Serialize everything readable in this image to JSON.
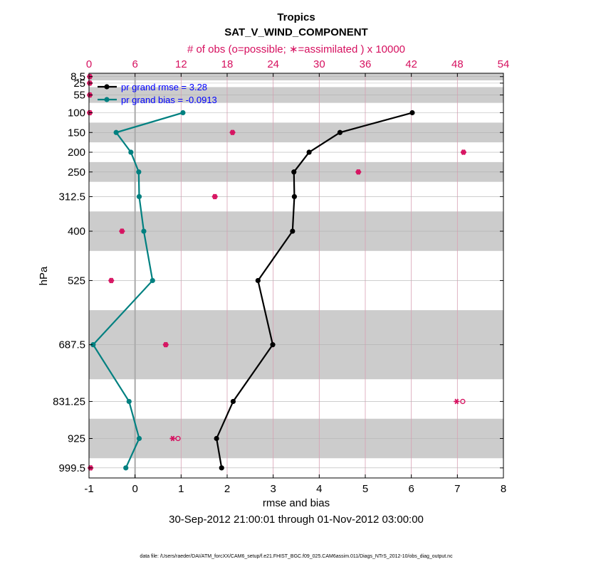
{
  "chart_data": {
    "type": "line",
    "title": "Tropics",
    "subtitle": "SAT_V_WIND_COMPONENT",
    "top_axis_label": "# of obs (o=possible; ∗=assimilated ) x 10000",
    "xlabel": "rmse and bias",
    "ylabel": "hPa",
    "date_range": "30-Sep-2012 21:00:01 through 01-Nov-2012 03:00:00",
    "footnote": "data file: /Users/raeder/DAI/ATM_forcXX/CAM6_setup/f.e21.FHIST_BGC.f09_025.CAM6assim.011/Diags_NTrS_2012-10/obs_diag_output.nc",
    "xlim": [
      -1,
      8
    ],
    "x_ticks": [
      "-1",
      "0",
      "1",
      "2",
      "3",
      "4",
      "5",
      "6",
      "7",
      "8"
    ],
    "top_xlim": [
      0,
      54
    ],
    "top_ticks": [
      "0",
      "6",
      "12",
      "18",
      "24",
      "30",
      "36",
      "42",
      "48",
      "54"
    ],
    "ylim": [
      1025,
      0
    ],
    "levels": [
      8.5,
      25,
      55,
      100,
      150,
      200,
      250,
      312.5,
      400,
      525,
      687.5,
      831.25,
      925,
      999.5
    ],
    "level_labels": [
      "8.5",
      "25",
      "55",
      "100",
      "150",
      "200",
      "250",
      "312.5",
      "400",
      "525",
      "687.5",
      "831.25",
      "925",
      "999.5"
    ],
    "layer_bands": [
      [
        0,
        18
      ],
      [
        35,
        75
      ],
      [
        125,
        175
      ],
      [
        225,
        275
      ],
      [
        350,
        450
      ],
      [
        600,
        775
      ],
      [
        875,
        975
      ]
    ],
    "series": [
      {
        "name": "pr grand rmse = 3.28",
        "color": "#000000",
        "points": [
          {
            "p": 100,
            "v": 6.02
          },
          {
            "p": 150,
            "v": 4.45
          },
          {
            "p": 200,
            "v": 3.78
          },
          {
            "p": 250,
            "v": 3.45
          },
          {
            "p": 312.5,
            "v": 3.46
          },
          {
            "p": 400,
            "v": 3.42
          },
          {
            "p": 525,
            "v": 2.67
          },
          {
            "p": 687.5,
            "v": 2.99
          },
          {
            "p": 831.25,
            "v": 2.13
          },
          {
            "p": 925,
            "v": 1.77
          },
          {
            "p": 999.5,
            "v": 1.88
          }
        ]
      },
      {
        "name": "pr grand bias = -0.0913",
        "color": "#008080",
        "points": [
          {
            "p": 100,
            "v": 1.04
          },
          {
            "p": 150,
            "v": -0.41
          },
          {
            "p": 200,
            "v": -0.09
          },
          {
            "p": 250,
            "v": 0.08
          },
          {
            "p": 312.5,
            "v": 0.09
          },
          {
            "p": 400,
            "v": 0.19
          },
          {
            "p": 525,
            "v": 0.38
          },
          {
            "p": 687.5,
            "v": -0.91
          },
          {
            "p": 831.25,
            "v": -0.13
          },
          {
            "p": 925,
            "v": 0.09
          },
          {
            "p": 999.5,
            "v": -0.2
          }
        ]
      }
    ],
    "obs_counts": {
      "color": "#d6105f",
      "possible": [
        {
          "p": 8.5,
          "n": 0.1
        },
        {
          "p": 25,
          "n": 0.1
        },
        {
          "p": 55,
          "n": 0.1
        },
        {
          "p": 100,
          "n": 0.1
        },
        {
          "p": 150,
          "n": 18.7
        },
        {
          "p": 200,
          "n": 48.8
        },
        {
          "p": 250,
          "n": 35.1
        },
        {
          "p": 312.5,
          "n": 16.4
        },
        {
          "p": 400,
          "n": 4.3
        },
        {
          "p": 525,
          "n": 2.9
        },
        {
          "p": 687.5,
          "n": 10.0
        },
        {
          "p": 831.25,
          "n": 48.7
        },
        {
          "p": 925,
          "n": 11.6
        },
        {
          "p": 999.5,
          "n": 0.2
        }
      ],
      "assimilated": [
        {
          "p": 8.5,
          "n": 0.1
        },
        {
          "p": 25,
          "n": 0.1
        },
        {
          "p": 55,
          "n": 0.1
        },
        {
          "p": 100,
          "n": 0.1
        },
        {
          "p": 150,
          "n": 18.7
        },
        {
          "p": 200,
          "n": 48.8
        },
        {
          "p": 250,
          "n": 35.1
        },
        {
          "p": 312.5,
          "n": 16.4
        },
        {
          "p": 400,
          "n": 4.3
        },
        {
          "p": 525,
          "n": 2.9
        },
        {
          "p": 687.5,
          "n": 10.0
        },
        {
          "p": 831.25,
          "n": 47.9
        },
        {
          "p": 925,
          "n": 10.9
        },
        {
          "p": 999.5,
          "n": 0.2
        }
      ]
    },
    "legend_position": "top-left",
    "grid": true
  }
}
